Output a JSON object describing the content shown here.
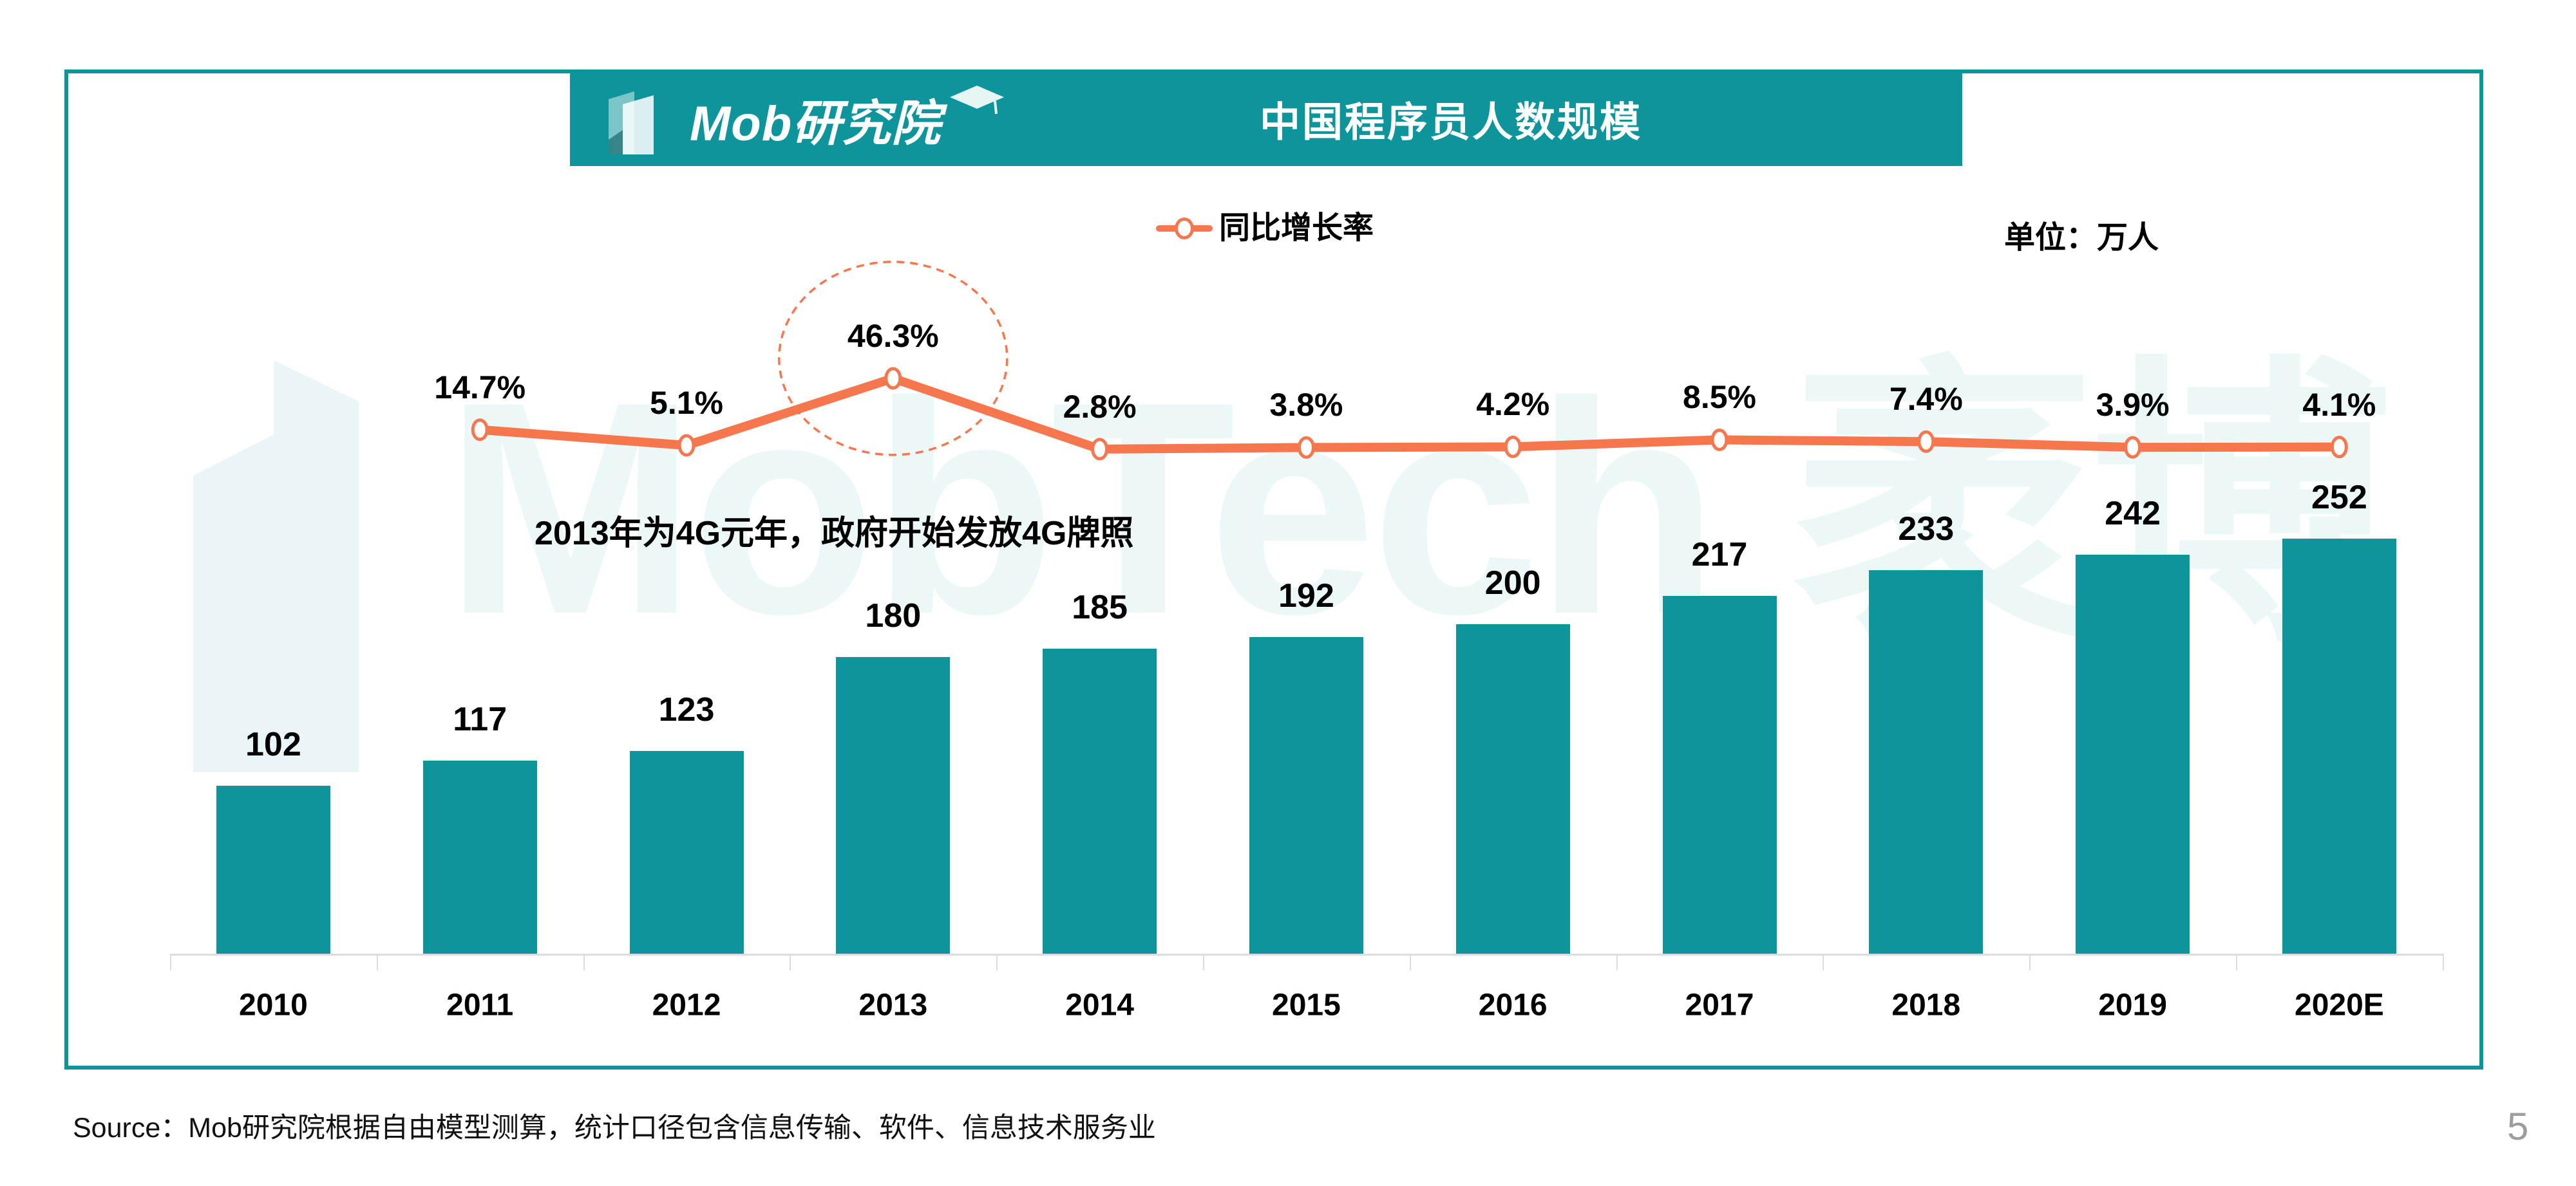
{
  "header": {
    "logo_text": "Mob研究院",
    "title": "中国程序员人数规模"
  },
  "legend": {
    "label": "同比增长率"
  },
  "unit_label": "单位：万人",
  "annotation": "2013年为4G元年，政府开始发放4G牌照",
  "watermark": "MobTech 袤博",
  "source": "Source：Mob研究院根据自由模型测算，统计口径包含信息传输、软件、信息技术服务业",
  "page_number": "5",
  "colors": {
    "teal": "#0E959B",
    "orange": "#F6774D",
    "axis_gray": "#DCDCDC",
    "page_gray": "#9D9D9D"
  },
  "chart_data": {
    "type": "bar+line",
    "title": "中国程序员人数规模",
    "unit": "万人",
    "categories": [
      "2010",
      "2011",
      "2012",
      "2013",
      "2014",
      "2015",
      "2016",
      "2017",
      "2018",
      "2019",
      "2020E"
    ],
    "series": [
      {
        "name": "程序员人数",
        "type": "bar",
        "values": [
          102,
          117,
          123,
          180,
          185,
          192,
          200,
          217,
          233,
          242,
          252
        ]
      },
      {
        "name": "同比增长率",
        "type": "line",
        "unit": "%",
        "values": [
          null,
          14.7,
          5.1,
          46.3,
          2.8,
          3.8,
          4.2,
          8.5,
          7.4,
          3.9,
          4.1
        ]
      }
    ],
    "highlight": {
      "category": "2013",
      "label": "46.3%"
    },
    "legend_position": "top-center",
    "grid": false,
    "x_axis_baseline": true
  }
}
